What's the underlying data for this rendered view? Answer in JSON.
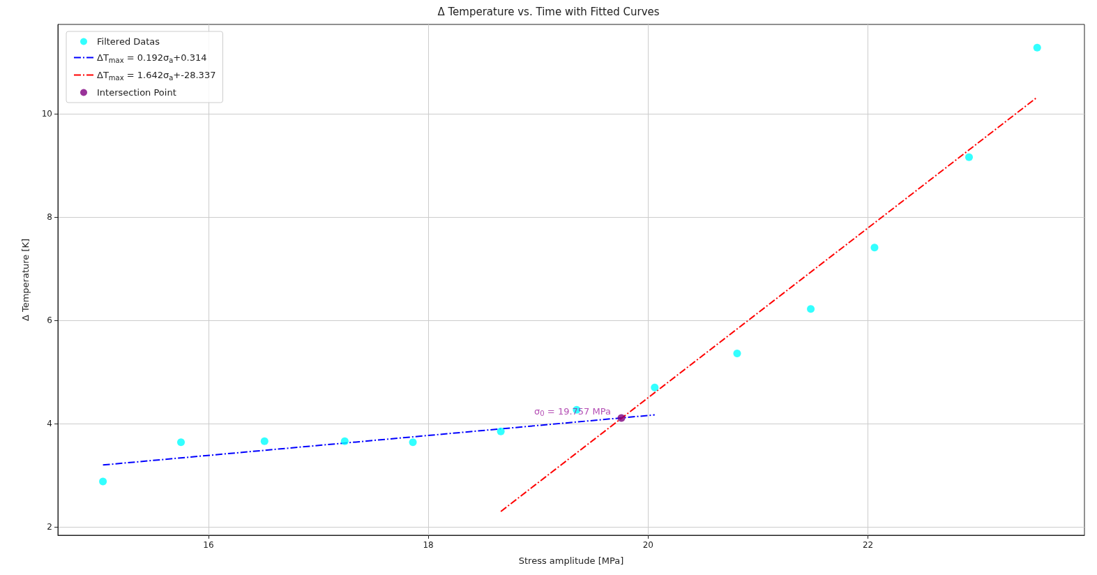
{
  "chart_data": {
    "type": "scatter",
    "title": "Δ Temperature vs. Time with Fitted Curves",
    "xlabel": "Stress amplitude [MPa]",
    "ylabel": "Δ Temperature [K]",
    "xlim": [
      14.63,
      23.97
    ],
    "ylim": [
      1.84,
      11.73
    ],
    "xticks": [
      16,
      18,
      20,
      22
    ],
    "yticks": [
      2,
      4,
      6,
      8,
      10
    ],
    "grid": true,
    "legend": "top left",
    "series": [
      {
        "name": "Filtered Datas",
        "color": "#00ffff",
        "marker": "circle",
        "x": [
          15.04,
          15.75,
          16.51,
          17.24,
          17.86,
          18.66,
          19.35,
          20.06,
          20.81,
          21.48,
          22.06,
          22.92,
          23.54
        ],
        "values": [
          2.88,
          3.64,
          3.66,
          3.66,
          3.64,
          3.85,
          4.27,
          4.7,
          5.36,
          6.22,
          7.41,
          9.16,
          11.28
        ]
      },
      {
        "type": "line",
        "name": "ΔT$_{max}$ = 0.192σ$_{a}$+0.314",
        "color": "#0000ff",
        "line_style": "dashdot",
        "marker": "none",
        "x": [
          15.04,
          20.06
        ],
        "values": [
          3.2,
          4.17
        ]
      },
      {
        "type": "line",
        "name": "ΔT$_{max}$ = 1.642σ$_{a}$+-28.337",
        "color": "#ff0000",
        "line_style": "dashdot",
        "marker": "none",
        "x": [
          18.66,
          23.54
        ],
        "values": [
          2.3,
          10.32
        ]
      },
      {
        "name": "Intersection Point",
        "color": "#800080",
        "marker": "circle",
        "x": [
          19.757
        ],
        "values": [
          4.11
        ]
      }
    ],
    "annotations": [
      {
        "text": "σ$_{0}$ = 19.757 MPa",
        "x": 19.757,
        "y": 4.11
      }
    ]
  }
}
